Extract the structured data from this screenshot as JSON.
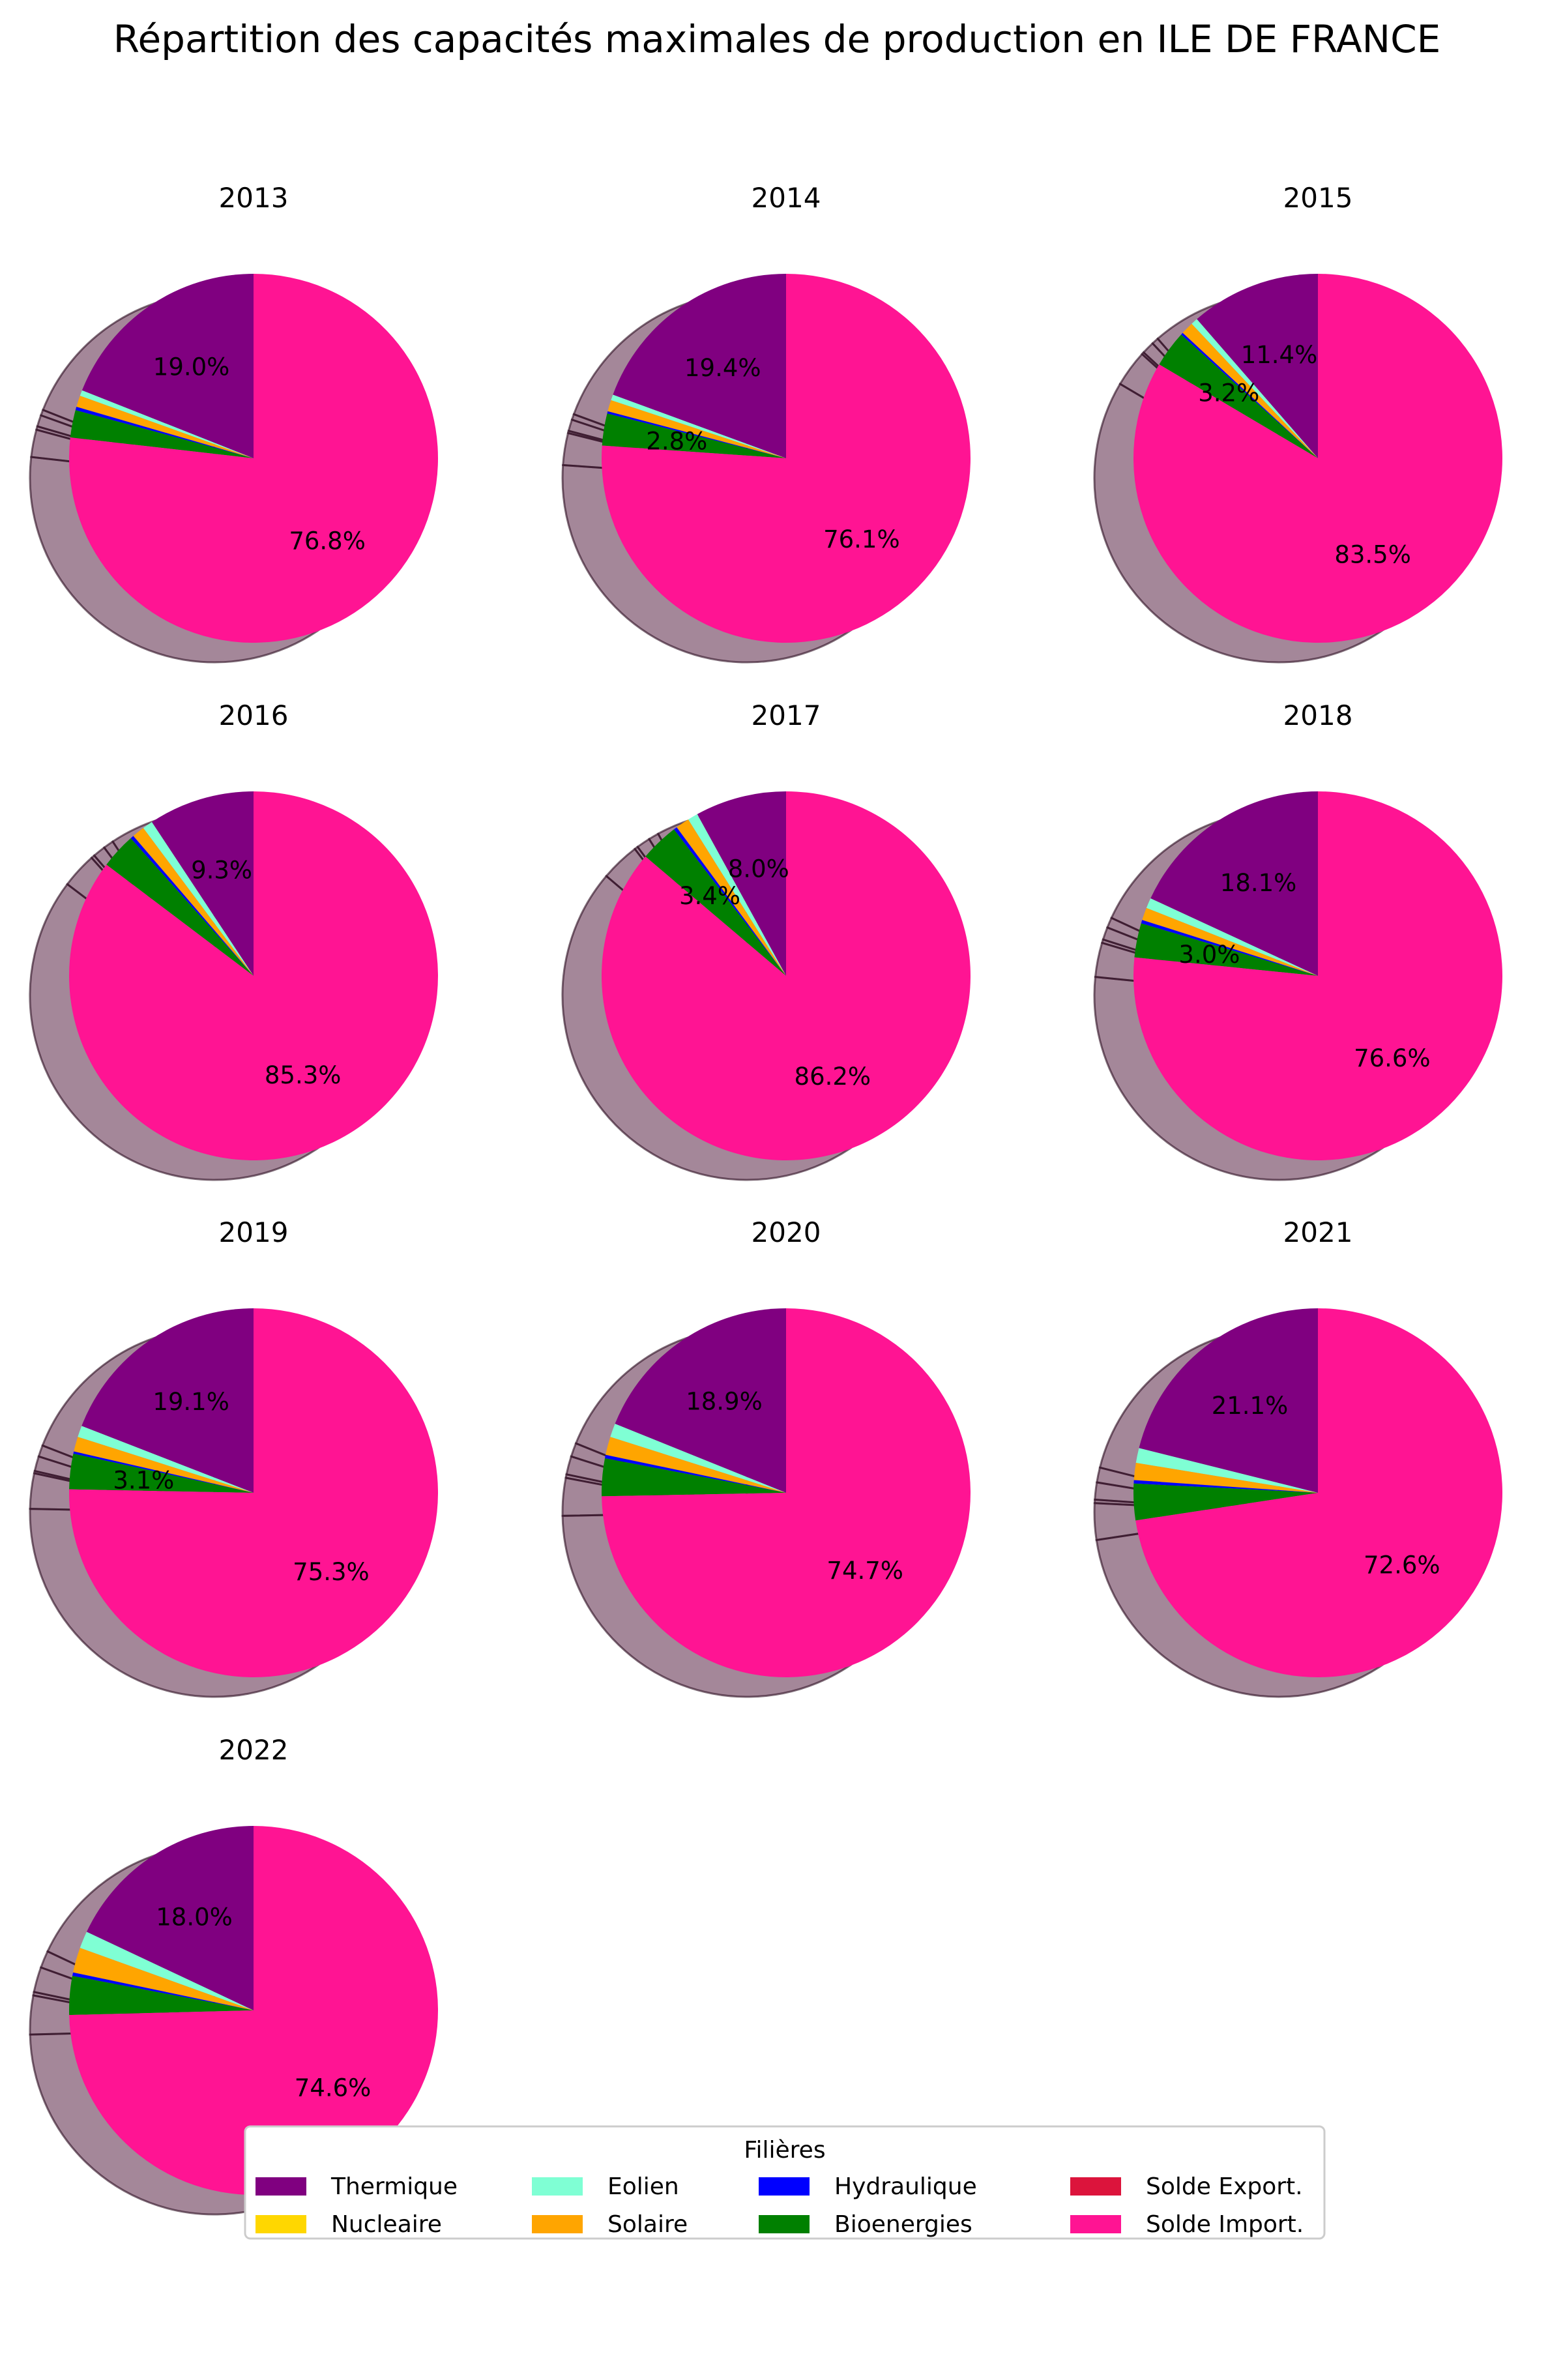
{
  "chart_data": {
    "type": "pie",
    "title": "Répartition des capacités maximales de production en ILE DE FRANCE",
    "legend": {
      "title": "Filières",
      "placement": "bottom-center",
      "entries": [
        {
          "name": "Thermique",
          "color": "#800080"
        },
        {
          "name": "Nucleaire",
          "color": "#FFD700"
        },
        {
          "name": "Eolien",
          "color": "#7FFFD4"
        },
        {
          "name": "Solaire",
          "color": "#FFA500"
        },
        {
          "name": "Hydraulique",
          "color": "#0000FF"
        },
        {
          "name": "Bioenergies",
          "color": "#008000"
        },
        {
          "name": "Solde Export.",
          "color": "#DC143C"
        },
        {
          "name": "Solde Import.",
          "color": "#FF1493"
        }
      ]
    },
    "categories": [
      "Thermique",
      "Nucleaire",
      "Eolien",
      "Solaire",
      "Hydraulique",
      "Bioenergies",
      "Solde Export.",
      "Solde Import."
    ],
    "pies": [
      {
        "title": "2013",
        "values": [
          19.0,
          0,
          0.5,
          1.0,
          0.3,
          2.4,
          0,
          76.8
        ],
        "labels": [
          "19.0%",
          "",
          "",
          "",
          "",
          "",
          "",
          "76.8%"
        ]
      },
      {
        "title": "2014",
        "values": [
          19.4,
          0,
          0.5,
          1.0,
          0.2,
          2.8,
          0,
          76.1
        ],
        "labels": [
          "19.4%",
          "",
          "",
          "",
          "",
          "2.8%",
          "",
          "76.1%"
        ]
      },
      {
        "title": "2015",
        "values": [
          11.4,
          0,
          0.6,
          1.1,
          0.2,
          3.2,
          0,
          83.5
        ],
        "labels": [
          "11.4%",
          "",
          "",
          "",
          "",
          "3.2%",
          "",
          "83.5%"
        ]
      },
      {
        "title": "2016",
        "values": [
          9.3,
          0,
          0.9,
          1.1,
          0.3,
          3.1,
          0,
          85.3
        ],
        "labels": [
          "9.3%",
          "",
          "",
          "",
          "",
          "",
          "",
          "85.3%"
        ]
      },
      {
        "title": "2017",
        "values": [
          8.0,
          0,
          0.9,
          1.2,
          0.3,
          3.4,
          0,
          86.2
        ],
        "labels": [
          "8.0%",
          "",
          "",
          "",
          "",
          "3.4%",
          "",
          "86.2%"
        ]
      },
      {
        "title": "2018",
        "values": [
          18.1,
          0,
          0.9,
          1.1,
          0.3,
          3.0,
          0,
          76.6
        ],
        "labels": [
          "18.1%",
          "",
          "",
          "",
          "",
          "3.0%",
          "",
          "76.6%"
        ]
      },
      {
        "title": "2019",
        "values": [
          19.1,
          0,
          1.0,
          1.3,
          0.2,
          3.1,
          0,
          75.3
        ],
        "labels": [
          "19.1%",
          "",
          "",
          "",
          "",
          "3.1%",
          "",
          "75.3%"
        ]
      },
      {
        "title": "2020",
        "values": [
          18.9,
          0,
          1.2,
          1.6,
          0.3,
          3.3,
          0,
          74.7
        ],
        "labels": [
          "18.9%",
          "",
          "",
          "",
          "",
          "",
          "",
          "74.7%"
        ]
      },
      {
        "title": "2021",
        "values": [
          21.1,
          0,
          1.3,
          1.5,
          0.3,
          3.2,
          0,
          72.6
        ],
        "labels": [
          "21.1%",
          "",
          "",
          "",
          "",
          "",
          "",
          "72.6%"
        ]
      },
      {
        "title": "2022",
        "values": [
          18.0,
          0,
          1.5,
          2.2,
          0.3,
          3.4,
          0,
          74.6
        ],
        "labels": [
          "18.0%",
          "",
          "",
          "",
          "",
          "",
          "",
          "74.6%"
        ]
      }
    ],
    "shadow": true,
    "startangle": 90,
    "counterclockwise": true
  }
}
